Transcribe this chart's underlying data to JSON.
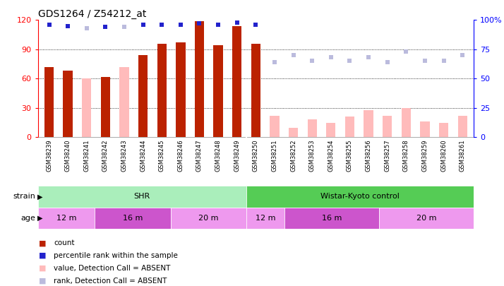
{
  "title": "GDS1264 / Z54212_at",
  "samples": [
    "GSM38239",
    "GSM38240",
    "GSM38241",
    "GSM38242",
    "GSM38243",
    "GSM38244",
    "GSM38245",
    "GSM38246",
    "GSM38247",
    "GSM38248",
    "GSM38249",
    "GSM38250",
    "GSM38251",
    "GSM38252",
    "GSM38253",
    "GSM38254",
    "GSM38255",
    "GSM38256",
    "GSM38257",
    "GSM38258",
    "GSM38259",
    "GSM38260",
    "GSM38261"
  ],
  "count_values": [
    72,
    68,
    null,
    62,
    null,
    84,
    96,
    97,
    119,
    94,
    114,
    96,
    null,
    null,
    null,
    null,
    null,
    null,
    null,
    null,
    null,
    null,
    null
  ],
  "count_absent": [
    null,
    null,
    60,
    null,
    72,
    null,
    null,
    null,
    null,
    null,
    null,
    null,
    22,
    10,
    18,
    15,
    21,
    28,
    22,
    30,
    16,
    15,
    22
  ],
  "pct_rank_present": [
    96,
    95,
    null,
    94,
    null,
    96,
    96,
    96,
    97,
    96,
    98,
    96,
    null,
    null,
    null,
    null,
    null,
    null,
    null,
    null,
    null,
    null,
    null
  ],
  "pct_rank_absent": [
    null,
    null,
    93,
    null,
    94,
    null,
    null,
    null,
    null,
    null,
    null,
    null,
    64,
    70,
    65,
    68,
    65,
    68,
    64,
    73,
    65,
    65,
    70
  ],
  "left_ylim": [
    0,
    120
  ],
  "right_ylim": [
    0,
    100
  ],
  "left_yticks": [
    0,
    30,
    60,
    90,
    120
  ],
  "right_yticks": [
    0,
    25,
    50,
    75,
    100
  ],
  "right_yticklabels": [
    "0",
    "25",
    "50",
    "75",
    "100%"
  ],
  "color_count_present": "#bb2200",
  "color_count_absent": "#ffbbbb",
  "color_rank_present": "#2222cc",
  "color_rank_absent": "#bbbbdd",
  "strain_groups": [
    {
      "label": "SHR",
      "start": 0,
      "end": 11,
      "color": "#aaeebb"
    },
    {
      "label": "Wistar-Kyoto control",
      "start": 11,
      "end": 23,
      "color": "#55cc55"
    }
  ],
  "age_groups": [
    {
      "label": "12 m",
      "start": 0,
      "end": 3,
      "color": "#ee99ee"
    },
    {
      "label": "16 m",
      "start": 3,
      "end": 7,
      "color": "#cc55cc"
    },
    {
      "label": "20 m",
      "start": 7,
      "end": 11,
      "color": "#ee99ee"
    },
    {
      "label": "12 m",
      "start": 11,
      "end": 13,
      "color": "#ee99ee"
    },
    {
      "label": "16 m",
      "start": 13,
      "end": 18,
      "color": "#cc55cc"
    },
    {
      "label": "20 m",
      "start": 18,
      "end": 23,
      "color": "#ee99ee"
    }
  ],
  "legend_items": [
    {
      "label": "count",
      "color": "#bb2200"
    },
    {
      "label": "percentile rank within the sample",
      "color": "#2222cc"
    },
    {
      "label": "value, Detection Call = ABSENT",
      "color": "#ffbbbb"
    },
    {
      "label": "rank, Detection Call = ABSENT",
      "color": "#bbbbdd"
    }
  ],
  "bar_width": 0.5,
  "dot_size": 5,
  "gridline_vals": [
    30,
    60,
    90
  ],
  "bg_color": "#ffffff",
  "xticklabel_area_color": "#dddddd"
}
